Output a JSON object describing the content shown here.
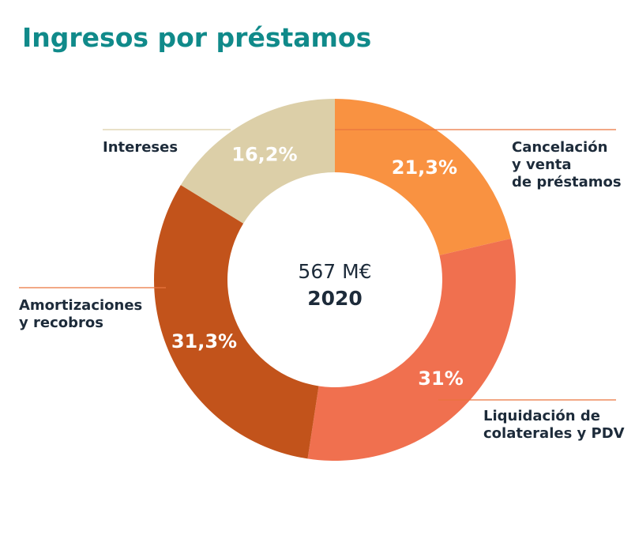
{
  "title": "Ingresos por préstamos",
  "center": {
    "amount": "567 M€",
    "year": "2020"
  },
  "colors": {
    "title": "#108a8a",
    "label_text": "#1d2b3a",
    "leader_line_orange": "#e9743f",
    "leader_line_beige": "#dccfa8",
    "percent_text": "#ffffff"
  },
  "chart_data": {
    "type": "pie",
    "variant": "donut",
    "title": "Ingresos por préstamos",
    "unit": "%",
    "total_label": "567 M€",
    "year_label": "2020",
    "slices": [
      {
        "name": "Cancelación y venta de préstamos",
        "lines": [
          "Cancelación",
          "y venta",
          "de préstamos"
        ],
        "value": 21.3,
        "label": "21,3%",
        "color": "#f99241"
      },
      {
        "name": "Liquidación de colaterales y PDV",
        "lines": [
          "Liquidación de",
          "colaterales y PDV"
        ],
        "value": 31.0,
        "label": "31%",
        "color": "#f0704f"
      },
      {
        "name": "Amortizaciones y recobros",
        "lines": [
          "Amortizaciones",
          "y recobros"
        ],
        "value": 31.3,
        "label": "31,3%",
        "color": "#c2531b"
      },
      {
        "name": "Intereses",
        "lines": [
          "Intereses"
        ],
        "value": 16.2,
        "label": "16,2%",
        "color": "#dccfa8"
      }
    ]
  }
}
